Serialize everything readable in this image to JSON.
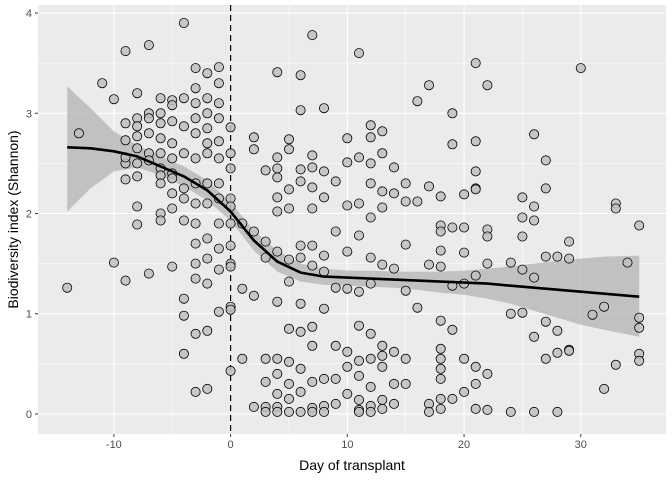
{
  "chart_data": {
    "type": "scatter",
    "xlabel": "Day of transplant",
    "ylabel": "Biodiversity index (Shannon)",
    "xlim": [
      -16.5,
      37.3
    ],
    "ylim": [
      -0.2,
      4.08
    ],
    "x_ticks": [
      -10,
      0,
      10,
      20,
      30
    ],
    "y_ticks": [
      0,
      1,
      2,
      3,
      4
    ],
    "grid": true,
    "legend": "none",
    "reference_line": {
      "x": 0,
      "style": "dashed"
    },
    "colors": {
      "panel_background": "#ebebeb",
      "grid_major": "#ffffff",
      "point_fill": "#c0c0c0",
      "point_stroke": "#000000",
      "smooth_line": "#000000",
      "confidence_band": "#b3b3b3",
      "tick_label": "#4d4d4d"
    },
    "points": [
      [
        -14,
        1.26
      ],
      [
        -13,
        2.8
      ],
      [
        -11,
        3.3
      ],
      [
        -10,
        3.14
      ],
      [
        -10,
        1.51
      ],
      [
        -9,
        3.62
      ],
      [
        -9,
        1.33
      ],
      [
        -9,
        2.9
      ],
      [
        -9,
        2.34
      ],
      [
        -9,
        2.5
      ],
      [
        -9,
        2.73
      ],
      [
        -9,
        2.56
      ],
      [
        -8,
        3.2
      ],
      [
        -8,
        2.95
      ],
      [
        -8,
        2.87
      ],
      [
        -8,
        2.77
      ],
      [
        -8,
        2.65
      ],
      [
        -8,
        2.5
      ],
      [
        -8,
        2.37
      ],
      [
        -8,
        2.07
      ],
      [
        -8,
        1.89
      ],
      [
        -7,
        3.68
      ],
      [
        -7,
        3.0
      ],
      [
        -7,
        2.95
      ],
      [
        -7,
        2.8
      ],
      [
        -7,
        2.6
      ],
      [
        -7,
        2.53
      ],
      [
        -7,
        1.4
      ],
      [
        -6,
        3.15
      ],
      [
        -6,
        3.0
      ],
      [
        -6,
        2.9
      ],
      [
        -6,
        2.75
      ],
      [
        -6,
        2.6
      ],
      [
        -6,
        2.45
      ],
      [
        -6,
        2.38
      ],
      [
        -6,
        2.3
      ],
      [
        -6,
        2.0
      ],
      [
        -6,
        1.93
      ],
      [
        -5,
        3.13
      ],
      [
        -5,
        3.08
      ],
      [
        -5,
        2.92
      ],
      [
        -5,
        2.7
      ],
      [
        -5,
        2.55
      ],
      [
        -5,
        2.4
      ],
      [
        -5,
        2.35
      ],
      [
        -5,
        2.2
      ],
      [
        -5,
        2.05
      ],
      [
        -5,
        1.47
      ],
      [
        -4,
        3.9
      ],
      [
        -4,
        3.15
      ],
      [
        -4,
        2.87
      ],
      [
        -4,
        2.6
      ],
      [
        -4,
        2.25
      ],
      [
        -4,
        2.15
      ],
      [
        -4,
        1.93
      ],
      [
        -4,
        1.15
      ],
      [
        -4,
        0.98
      ],
      [
        -4,
        0.6
      ],
      [
        -3,
        3.45
      ],
      [
        -3,
        3.25
      ],
      [
        -3,
        3.1
      ],
      [
        -3,
        2.95
      ],
      [
        -3,
        2.8
      ],
      [
        -3,
        2.55
      ],
      [
        -3,
        2.3
      ],
      [
        -3,
        2.1
      ],
      [
        -3,
        1.9
      ],
      [
        -3,
        1.7
      ],
      [
        -3,
        1.5
      ],
      [
        -3,
        1.35
      ],
      [
        -3,
        0.8
      ],
      [
        -3,
        0.22
      ],
      [
        -2,
        3.4
      ],
      [
        -2,
        3.15
      ],
      [
        -2,
        3.0
      ],
      [
        -2,
        2.85
      ],
      [
        -2,
        2.7
      ],
      [
        -2,
        2.6
      ],
      [
        -2,
        2.3
      ],
      [
        -2,
        2.1
      ],
      [
        -2,
        1.75
      ],
      [
        -2,
        1.55
      ],
      [
        -2,
        1.3
      ],
      [
        -2,
        0.83
      ],
      [
        -2,
        0.25
      ],
      [
        -1,
        3.46
      ],
      [
        -1,
        3.3
      ],
      [
        -1,
        3.1
      ],
      [
        -1,
        2.95
      ],
      [
        -1,
        2.72
      ],
      [
        -1,
        2.55
      ],
      [
        -1,
        2.3
      ],
      [
        -1,
        2.15
      ],
      [
        -1,
        1.9
      ],
      [
        -1,
        1.65
      ],
      [
        -1,
        1.44
      ],
      [
        -1,
        1.02
      ],
      [
        0,
        2.86
      ],
      [
        0,
        2.6
      ],
      [
        0,
        2.45
      ],
      [
        0,
        2.15
      ],
      [
        0,
        2.07
      ],
      [
        0,
        1.9
      ],
      [
        0,
        1.68
      ],
      [
        0,
        1.5
      ],
      [
        0,
        1.47
      ],
      [
        0,
        1.07
      ],
      [
        0,
        1.04
      ],
      [
        0,
        0.43
      ],
      [
        1,
        1.9
      ],
      [
        1,
        1.25
      ],
      [
        1,
        0.55
      ],
      [
        2,
        2.76
      ],
      [
        2,
        2.64
      ],
      [
        2,
        1.82
      ],
      [
        2,
        1.18
      ],
      [
        2,
        0.07
      ],
      [
        3,
        2.43
      ],
      [
        3,
        1.72
      ],
      [
        3,
        1.56
      ],
      [
        3,
        0.55
      ],
      [
        3,
        0.32
      ],
      [
        3,
        0.07
      ],
      [
        3,
        0.02
      ],
      [
        4,
        3.41
      ],
      [
        4,
        2.56
      ],
      [
        4,
        2.45
      ],
      [
        4,
        2.36
      ],
      [
        4,
        2.16
      ],
      [
        4,
        2.02
      ],
      [
        4,
        1.62
      ],
      [
        4,
        1.12
      ],
      [
        4,
        0.55
      ],
      [
        4,
        0.4
      ],
      [
        4,
        0.2
      ],
      [
        4,
        0.07
      ],
      [
        4,
        0.02
      ],
      [
        5,
        2.74
      ],
      [
        5,
        2.64
      ],
      [
        5,
        2.24
      ],
      [
        5,
        2.05
      ],
      [
        5,
        1.54
      ],
      [
        5,
        1.32
      ],
      [
        5,
        0.85
      ],
      [
        5,
        0.52
      ],
      [
        5,
        0.3
      ],
      [
        5,
        0.15
      ],
      [
        5,
        0.02
      ],
      [
        6,
        3.38
      ],
      [
        6,
        3.03
      ],
      [
        6,
        2.44
      ],
      [
        6,
        2.32
      ],
      [
        6,
        1.68
      ],
      [
        6,
        1.56
      ],
      [
        6,
        1.1
      ],
      [
        6,
        0.82
      ],
      [
        6,
        0.45
      ],
      [
        6,
        0.22
      ],
      [
        6,
        0.02
      ],
      [
        7,
        3.78
      ],
      [
        7,
        2.58
      ],
      [
        7,
        2.46
      ],
      [
        7,
        2.26
      ],
      [
        7,
        2.05
      ],
      [
        7,
        1.68
      ],
      [
        7,
        1.48
      ],
      [
        7,
        0.87
      ],
      [
        7,
        0.68
      ],
      [
        7,
        0.32
      ],
      [
        7,
        0.06
      ],
      [
        7,
        0.02
      ],
      [
        8,
        3.05
      ],
      [
        8,
        2.42
      ],
      [
        8,
        2.16
      ],
      [
        8,
        1.58
      ],
      [
        8,
        1.42
      ],
      [
        8,
        1.05
      ],
      [
        8,
        0.35
      ],
      [
        8,
        0.08
      ],
      [
        8,
        0.02
      ],
      [
        9,
        2.32
      ],
      [
        9,
        1.82
      ],
      [
        9,
        1.26
      ],
      [
        9,
        0.68
      ],
      [
        9,
        0.35
      ],
      [
        9,
        0.1
      ],
      [
        10,
        2.75
      ],
      [
        10,
        2.51
      ],
      [
        10,
        2.08
      ],
      [
        10,
        1.62
      ],
      [
        10,
        1.25
      ],
      [
        10,
        0.62
      ],
      [
        10,
        0.47
      ],
      [
        10,
        0.2
      ],
      [
        11,
        3.6
      ],
      [
        11,
        2.56
      ],
      [
        11,
        2.1
      ],
      [
        11,
        1.78
      ],
      [
        11,
        1.22
      ],
      [
        11,
        0.88
      ],
      [
        11,
        0.53
      ],
      [
        11,
        0.38
      ],
      [
        11,
        0.14
      ],
      [
        11,
        0.04
      ],
      [
        11,
        0.02
      ],
      [
        12,
        2.88
      ],
      [
        12,
        2.76
      ],
      [
        12,
        2.5
      ],
      [
        12,
        2.3
      ],
      [
        12,
        1.96
      ],
      [
        12,
        1.56
      ],
      [
        12,
        1.3
      ],
      [
        12,
        0.8
      ],
      [
        12,
        0.55
      ],
      [
        12,
        0.27
      ],
      [
        12,
        0.08
      ],
      [
        12,
        0.02
      ],
      [
        13,
        2.82
      ],
      [
        13,
        2.6
      ],
      [
        13,
        2.22
      ],
      [
        13,
        2.06
      ],
      [
        13,
        1.49
      ],
      [
        13,
        0.68
      ],
      [
        13,
        0.58
      ],
      [
        13,
        0.47
      ],
      [
        13,
        0.14
      ],
      [
        13,
        0.05
      ],
      [
        14,
        2.46
      ],
      [
        14,
        2.2
      ],
      [
        14,
        1.45
      ],
      [
        14,
        0.62
      ],
      [
        14,
        0.3
      ],
      [
        14,
        0.1
      ],
      [
        15,
        2.3
      ],
      [
        15,
        2.12
      ],
      [
        15,
        1.69
      ],
      [
        15,
        1.23
      ],
      [
        15,
        0.55
      ],
      [
        15,
        0.3
      ],
      [
        16,
        3.12
      ],
      [
        16,
        2.12
      ],
      [
        16,
        1.06
      ],
      [
        17,
        3.28
      ],
      [
        17,
        2.27
      ],
      [
        17,
        1.49
      ],
      [
        17,
        0.1
      ],
      [
        17,
        0.02
      ],
      [
        18,
        2.17
      ],
      [
        18,
        1.88
      ],
      [
        18,
        1.82
      ],
      [
        18,
        1.63
      ],
      [
        18,
        1.47
      ],
      [
        18,
        0.93
      ],
      [
        18,
        0.65
      ],
      [
        18,
        0.55
      ],
      [
        18,
        0.45
      ],
      [
        18,
        0.35
      ],
      [
        18,
        0.15
      ],
      [
        18,
        0.05
      ],
      [
        19,
        3.0
      ],
      [
        19,
        2.69
      ],
      [
        19,
        1.86
      ],
      [
        19,
        1.28
      ],
      [
        19,
        0.84
      ],
      [
        19,
        0.15
      ],
      [
        20,
        2.19
      ],
      [
        20,
        1.86
      ],
      [
        20,
        1.61
      ],
      [
        20,
        1.3
      ],
      [
        20,
        0.55
      ],
      [
        20,
        0.22
      ],
      [
        21,
        3.5
      ],
      [
        21,
        2.72
      ],
      [
        21,
        2.42
      ],
      [
        21,
        2.25
      ],
      [
        21,
        2.24
      ],
      [
        21,
        1.38
      ],
      [
        21,
        0.47
      ],
      [
        21,
        0.3
      ],
      [
        21,
        0.05
      ],
      [
        22,
        3.28
      ],
      [
        22,
        1.84
      ],
      [
        22,
        1.77
      ],
      [
        22,
        1.5
      ],
      [
        22,
        0.4
      ],
      [
        22,
        0.04
      ],
      [
        24,
        1.51
      ],
      [
        24,
        1.0
      ],
      [
        24,
        0.02
      ],
      [
        25,
        2.16
      ],
      [
        25,
        1.96
      ],
      [
        25,
        1.77
      ],
      [
        25,
        1.44
      ],
      [
        25,
        1.01
      ],
      [
        26,
        2.79
      ],
      [
        26,
        2.07
      ],
      [
        26,
        1.93
      ],
      [
        26,
        1.36
      ],
      [
        26,
        0.77
      ],
      [
        26,
        0.02
      ],
      [
        27,
        2.53
      ],
      [
        27,
        2.25
      ],
      [
        27,
        1.57
      ],
      [
        27,
        0.92
      ],
      [
        27,
        0.55
      ],
      [
        28,
        1.57
      ],
      [
        28,
        0.83
      ],
      [
        28,
        0.61
      ],
      [
        28,
        0.02
      ],
      [
        29,
        1.72
      ],
      [
        29,
        1.55
      ],
      [
        29,
        0.64
      ],
      [
        29,
        0.63
      ],
      [
        30,
        3.45
      ],
      [
        31,
        0.99
      ],
      [
        32,
        1.07
      ],
      [
        32,
        0.25
      ],
      [
        33,
        2.1
      ],
      [
        33,
        2.05
      ],
      [
        33,
        0.49
      ],
      [
        34,
        1.51
      ],
      [
        35,
        1.88
      ],
      [
        35,
        0.96
      ],
      [
        35,
        0.86
      ],
      [
        35,
        0.6
      ],
      [
        35,
        0.53
      ]
    ],
    "smooth": {
      "x": [
        -14,
        -12,
        -10,
        -8,
        -6,
        -4,
        -2,
        0,
        2,
        4,
        6,
        8,
        10,
        12,
        14,
        16,
        18,
        20,
        22,
        24,
        26,
        28,
        30,
        32,
        35
      ],
      "y": [
        2.66,
        2.65,
        2.62,
        2.57,
        2.47,
        2.37,
        2.23,
        2.02,
        1.73,
        1.52,
        1.41,
        1.37,
        1.36,
        1.35,
        1.34,
        1.33,
        1.32,
        1.31,
        1.3,
        1.28,
        1.26,
        1.24,
        1.22,
        1.2,
        1.17
      ],
      "upper": [
        3.27,
        3.05,
        2.82,
        2.68,
        2.57,
        2.47,
        2.33,
        2.11,
        1.83,
        1.63,
        1.5,
        1.45,
        1.43,
        1.43,
        1.42,
        1.42,
        1.42,
        1.43,
        1.45,
        1.47,
        1.5,
        1.53,
        1.55,
        1.57,
        1.58
      ],
      "lower": [
        2.02,
        2.25,
        2.42,
        2.46,
        2.38,
        2.27,
        2.13,
        1.93,
        1.63,
        1.42,
        1.32,
        1.29,
        1.28,
        1.27,
        1.26,
        1.24,
        1.21,
        1.19,
        1.15,
        1.1,
        1.03,
        0.96,
        0.89,
        0.84,
        0.77
      ]
    }
  }
}
